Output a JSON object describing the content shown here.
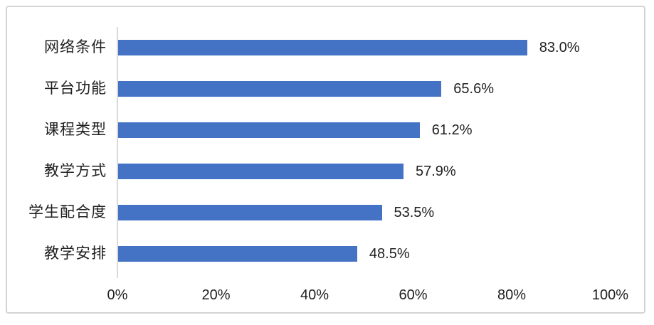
{
  "chart_data": {
    "type": "bar",
    "orientation": "horizontal",
    "title": "",
    "xlabel": "",
    "ylabel": "",
    "categories": [
      "网络条件",
      "平台功能",
      "课程类型",
      "教学方式",
      "学生配合度",
      "教学安排"
    ],
    "values": [
      83.0,
      65.6,
      61.2,
      57.9,
      53.5,
      48.5
    ],
    "data_labels": [
      "83.0%",
      "65.6%",
      "61.2%",
      "57.9%",
      "53.5%",
      "48.5%"
    ],
    "x_tick_labels": [
      "0%",
      "20%",
      "40%",
      "60%",
      "80%",
      "100%"
    ],
    "x_tick_values": [
      0,
      20,
      40,
      60,
      80,
      100
    ],
    "xlim": [
      0,
      100
    ],
    "grid": "off",
    "legend": "none",
    "data_labels_position": "outside-end",
    "colors": {
      "bar": "#4472C4",
      "axis_line": "#D9D9D9",
      "text": "#1F1F1F",
      "frame_border": "#D4D4D4",
      "background": "#FFFFFF"
    }
  }
}
